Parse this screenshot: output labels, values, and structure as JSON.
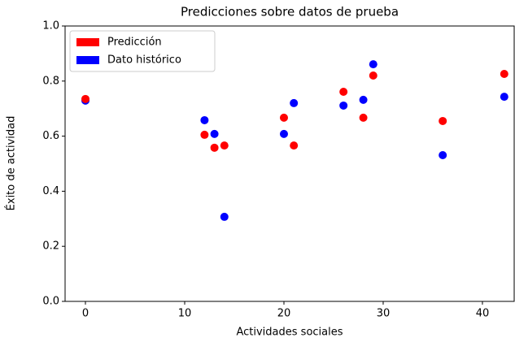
{
  "chart_data": {
    "type": "scatter",
    "title": "Predicciones sobre datos de prueba",
    "x_label": "Actividades sociales",
    "y_label": "Éxito de actividad",
    "x": [
      0,
      12,
      13,
      14,
      20,
      21,
      26,
      28,
      29,
      36,
      42.2
    ],
    "series": [
      {
        "name": "Predicción",
        "color": "#ff0000",
        "values": [
          0.735,
          0.605,
          0.558,
          0.566,
          0.667,
          0.566,
          0.761,
          0.667,
          0.82,
          0.655,
          0.826
        ]
      },
      {
        "name": "Dato histórico",
        "color": "#0000ff",
        "values": [
          0.729,
          0.658,
          0.608,
          0.307,
          0.608,
          0.72,
          0.711,
          0.732,
          0.861,
          0.531,
          0.743
        ]
      }
    ],
    "xlim": [
      -2.05,
      43.2
    ],
    "xticks": [
      0,
      10,
      20,
      30,
      40
    ],
    "ylim": [
      0,
      1
    ],
    "yticks": [
      {
        "value": 0,
        "label": "0.0"
      },
      0.2,
      0.4,
      0.6,
      0.8,
      {
        "value": 1,
        "label": "1.0"
      }
    ],
    "legend": "upper left"
  }
}
